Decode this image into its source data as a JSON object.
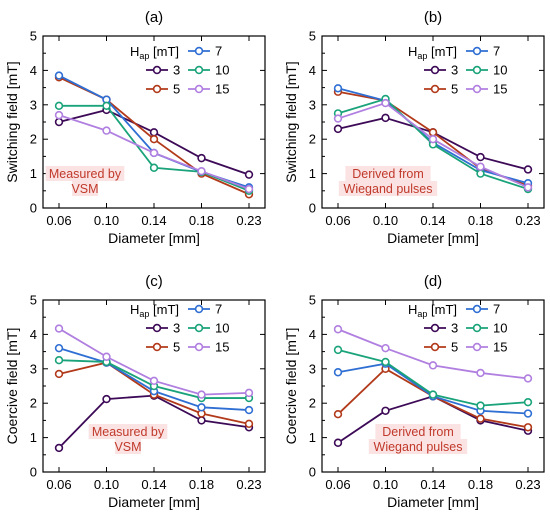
{
  "colors": {
    "3": "#3d0a57",
    "5": "#b23a1a",
    "7": "#2f6fd3",
    "10": "#1aa37a",
    "15": "#b07fe0"
  },
  "chart_data": [
    {
      "type": "line",
      "panel_label": "(a)",
      "categories": [
        "0.06",
        "0.10",
        "0.14",
        "0.18",
        "0.23"
      ],
      "xlabel": "Diameter [mm]",
      "ylabel": "Switching field [mT]",
      "ylim": [
        0,
        5
      ],
      "yticks": [
        "0",
        "1",
        "2",
        "3",
        "4",
        "5"
      ],
      "legend_title": "H",
      "legend_title_sub": "ap",
      "legend_title_unit": " [mT]",
      "annotation": [
        "Measured by",
        "VSM"
      ],
      "series": [
        {
          "name": "3",
          "values": [
            2.5,
            2.85,
            2.2,
            1.45,
            0.97
          ]
        },
        {
          "name": "5",
          "values": [
            3.8,
            3.15,
            2.0,
            1.0,
            0.4
          ]
        },
        {
          "name": "7",
          "values": [
            3.85,
            3.15,
            1.6,
            1.05,
            0.6
          ]
        },
        {
          "name": "10",
          "values": [
            2.97,
            2.97,
            1.17,
            1.05,
            0.5
          ]
        },
        {
          "name": "15",
          "values": [
            2.7,
            2.25,
            1.6,
            1.07,
            0.55
          ]
        }
      ]
    },
    {
      "type": "line",
      "panel_label": "(b)",
      "categories": [
        "0.06",
        "0.10",
        "0.14",
        "0.18",
        "0.23"
      ],
      "xlabel": "Diameter [mm]",
      "ylabel": "Switching field [mT]",
      "ylim": [
        0,
        5
      ],
      "yticks": [
        "0",
        "1",
        "2",
        "3",
        "4",
        "5"
      ],
      "legend_title": "H",
      "legend_title_sub": "ap",
      "legend_title_unit": " [mT]",
      "annotation": [
        "Derived from",
        "Wiegand pulses"
      ],
      "series": [
        {
          "name": "3",
          "values": [
            2.3,
            2.62,
            2.2,
            1.48,
            1.12
          ]
        },
        {
          "name": "5",
          "values": [
            3.38,
            3.12,
            2.2,
            1.15,
            0.65
          ]
        },
        {
          "name": "7",
          "values": [
            3.48,
            3.12,
            1.9,
            1.1,
            0.72
          ]
        },
        {
          "name": "10",
          "values": [
            2.75,
            3.17,
            1.85,
            1.0,
            0.55
          ]
        },
        {
          "name": "15",
          "values": [
            2.6,
            3.05,
            2.0,
            1.2,
            0.6
          ]
        }
      ]
    },
    {
      "type": "line",
      "panel_label": "(c)",
      "categories": [
        "0.06",
        "0.10",
        "0.14",
        "0.18",
        "0.23"
      ],
      "xlabel": "Diameter [mm]",
      "ylabel": "Coercive field [mT]",
      "ylim": [
        0,
        5
      ],
      "yticks": [
        "0",
        "1",
        "2",
        "3",
        "4",
        "5"
      ],
      "legend_title": "H",
      "legend_title_sub": "ap",
      "legend_title_unit": " [mT]",
      "annotation": [
        "Measured by",
        "VSM"
      ],
      "series": [
        {
          "name": "3",
          "values": [
            0.7,
            2.12,
            2.22,
            1.5,
            1.3
          ]
        },
        {
          "name": "5",
          "values": [
            2.85,
            3.18,
            2.25,
            1.7,
            1.4
          ]
        },
        {
          "name": "7",
          "values": [
            3.6,
            3.18,
            2.35,
            1.88,
            1.8
          ]
        },
        {
          "name": "10",
          "values": [
            3.25,
            3.2,
            2.5,
            2.15,
            2.15
          ]
        },
        {
          "name": "15",
          "values": [
            4.17,
            3.35,
            2.65,
            2.25,
            2.3
          ]
        }
      ]
    },
    {
      "type": "line",
      "panel_label": "(d)",
      "categories": [
        "0.06",
        "0.10",
        "0.14",
        "0.18",
        "0.23"
      ],
      "xlabel": "Diameter [mm]",
      "ylabel": "Coercive field [mT]",
      "ylim": [
        0,
        5
      ],
      "yticks": [
        "0",
        "1",
        "2",
        "3",
        "4",
        "5"
      ],
      "legend_title": "H",
      "legend_title_sub": "ap",
      "legend_title_unit": " [mT]",
      "annotation": [
        "Derived from",
        "Wiegand pulses"
      ],
      "series": [
        {
          "name": "3",
          "values": [
            0.85,
            1.78,
            2.2,
            1.5,
            1.2
          ]
        },
        {
          "name": "5",
          "values": [
            1.68,
            3.0,
            2.2,
            1.55,
            1.3
          ]
        },
        {
          "name": "7",
          "values": [
            2.9,
            3.15,
            2.2,
            1.78,
            1.7
          ]
        },
        {
          "name": "10",
          "values": [
            3.55,
            3.2,
            2.25,
            1.93,
            2.03
          ]
        },
        {
          "name": "15",
          "values": [
            4.15,
            3.6,
            3.1,
            2.88,
            2.72
          ]
        }
      ]
    }
  ],
  "legend_order": [
    "7",
    "3",
    "10",
    "5",
    "15"
  ]
}
